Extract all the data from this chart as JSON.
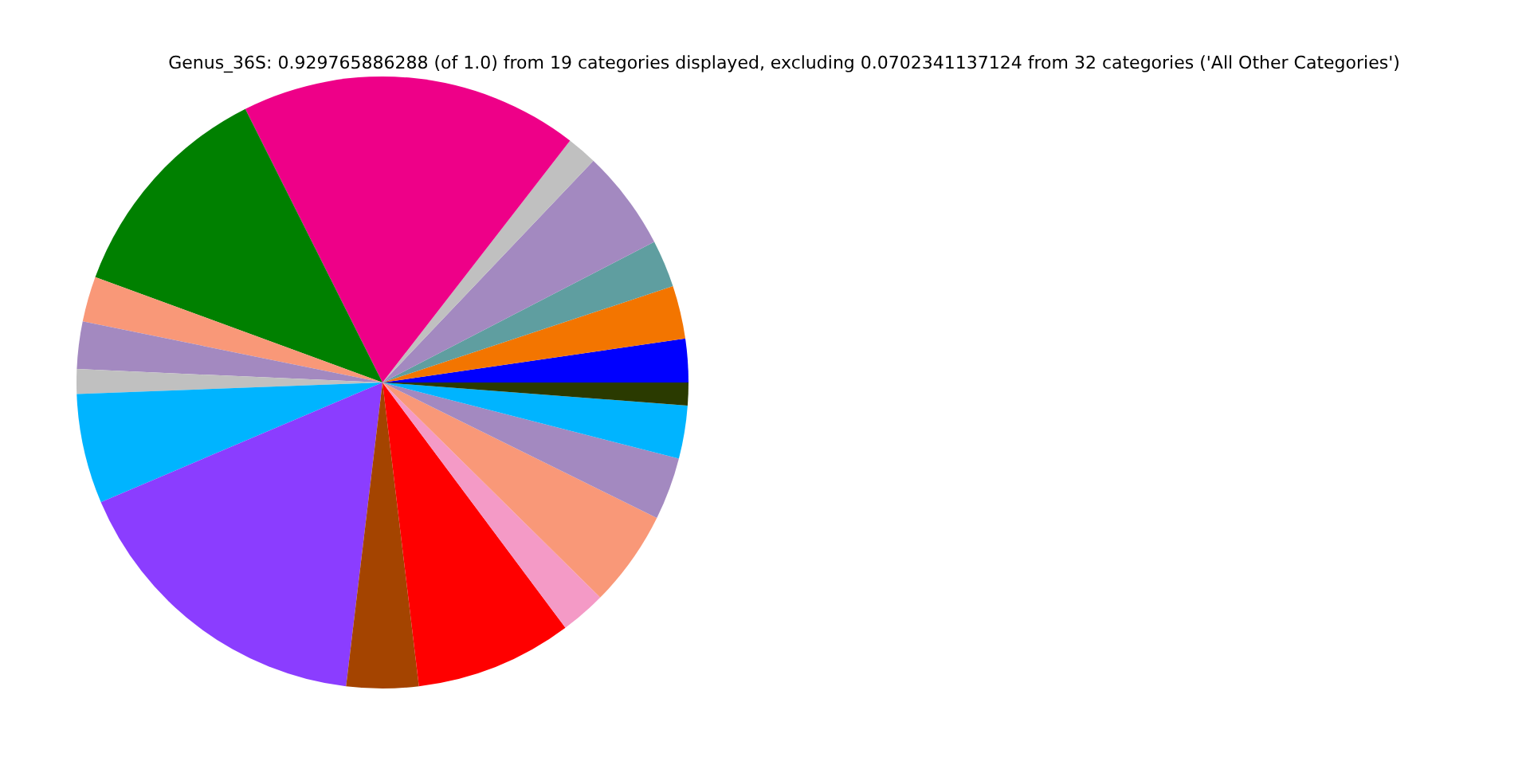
{
  "chart_data": {
    "type": "pie",
    "title": "Genus_36S: 0.929765886288 (of 1.0) from 19 categories displayed, excluding 0.0702341137124 from 32 categories ('All Other Categories')",
    "categories": [
      null,
      null,
      null,
      null,
      null,
      null,
      null,
      null,
      null,
      null,
      null,
      null,
      null,
      null,
      null,
      null,
      null,
      null,
      null
    ],
    "values": [
      2.3,
      2.8,
      2.5,
      5.3,
      1.6,
      17.9,
      12.0,
      2.4,
      2.5,
      1.3,
      5.8,
      16.7,
      3.8,
      8.3,
      2.4,
      5.1,
      3.3,
      2.8,
      1.2
    ],
    "colors": [
      "#0000ff",
      "#f37500",
      "#5f9ea0",
      "#a389c0",
      "#c0c0c0",
      "#ee0088",
      "#008000",
      "#f99878",
      "#a389c0",
      "#c0c0c0",
      "#00b4ff",
      "#8b3dff",
      "#a44400",
      "#ff0000",
      "#f49ac6",
      "#f99878",
      "#a389c0",
      "#00b4ff",
      "#2a3a00"
    ]
  }
}
